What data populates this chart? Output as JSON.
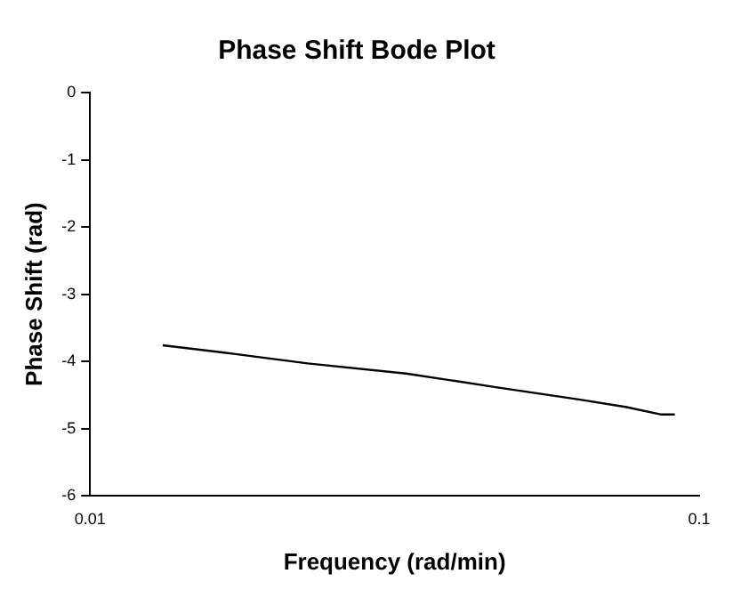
{
  "chart_data": {
    "type": "line",
    "title": "Phase Shift Bode Plot",
    "xlabel": "Frequency (rad/min)",
    "ylabel": "Phase Shift (rad)",
    "log": "x",
    "grid": false,
    "legend": false,
    "marker": "none",
    "line_style": "solid",
    "x": [
      0.01316,
      0.017,
      0.02276,
      0.033,
      0.0469,
      0.0638,
      0.076,
      0.0867,
      0.0912
    ],
    "series": [
      {
        "color": "#000000",
        "values": [
          -3.76,
          -3.88,
          -4.03,
          -4.18,
          -4.39,
          -4.57,
          -4.68,
          -4.79,
          -4.79
        ]
      }
    ],
    "xlim": [
      0.01,
      0.1
    ],
    "xticks": [
      0.01,
      0.1
    ],
    "ylim": [
      -6,
      0
    ],
    "yticks": [
      -6,
      -5,
      -4,
      -3,
      -2,
      -1,
      0
    ]
  }
}
